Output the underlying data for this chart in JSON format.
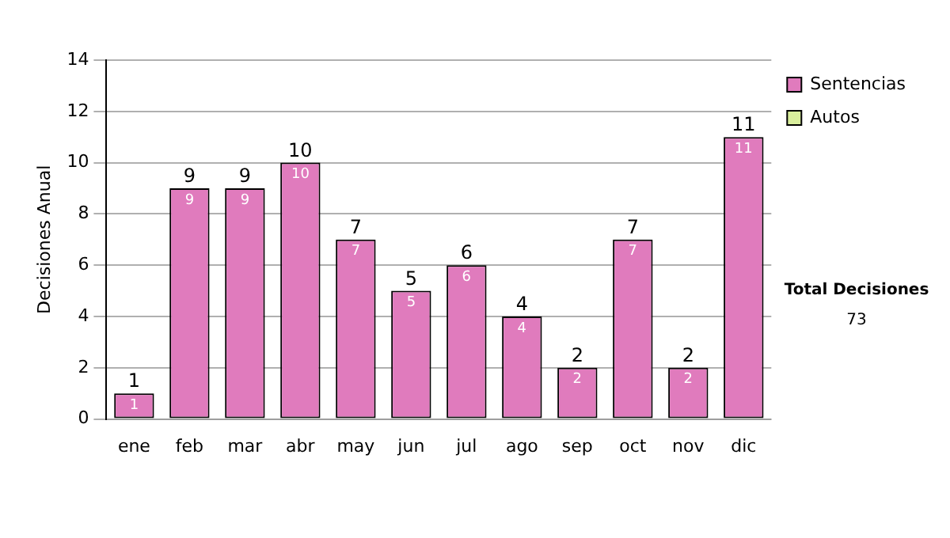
{
  "chart_data": {
    "type": "bar",
    "ylabel": "Decisiones Anual",
    "categories": [
      "ene",
      "feb",
      "mar",
      "abr",
      "may",
      "jun",
      "jul",
      "ago",
      "sep",
      "oct",
      "nov",
      "dic"
    ],
    "series": [
      {
        "name": "Sentencias",
        "color": "#e07bbd",
        "values": [
          1,
          9,
          9,
          10,
          7,
          5,
          6,
          4,
          2,
          7,
          2,
          11
        ],
        "value_labels": [
          "1",
          "9",
          "9",
          "10",
          "7",
          "5",
          "6",
          "4",
          "2",
          "7",
          "2",
          "11"
        ]
      },
      {
        "name": "Autos",
        "color": "#d9ee9c",
        "values": [
          0,
          0,
          0,
          0,
          0,
          0,
          0,
          0,
          0,
          0,
          0,
          0
        ]
      }
    ],
    "stacked": true,
    "totals": [
      "1",
      "9",
      "9",
      "10",
      "7",
      "5",
      "6",
      "4",
      "2",
      "7",
      "2",
      "11"
    ],
    "ylim": [
      0,
      14
    ],
    "yticks": [
      0,
      2,
      4,
      6,
      8,
      10,
      12,
      14
    ],
    "grid": "y",
    "legend": "right",
    "annotations": [
      "Total Decisiones",
      "73"
    ]
  }
}
